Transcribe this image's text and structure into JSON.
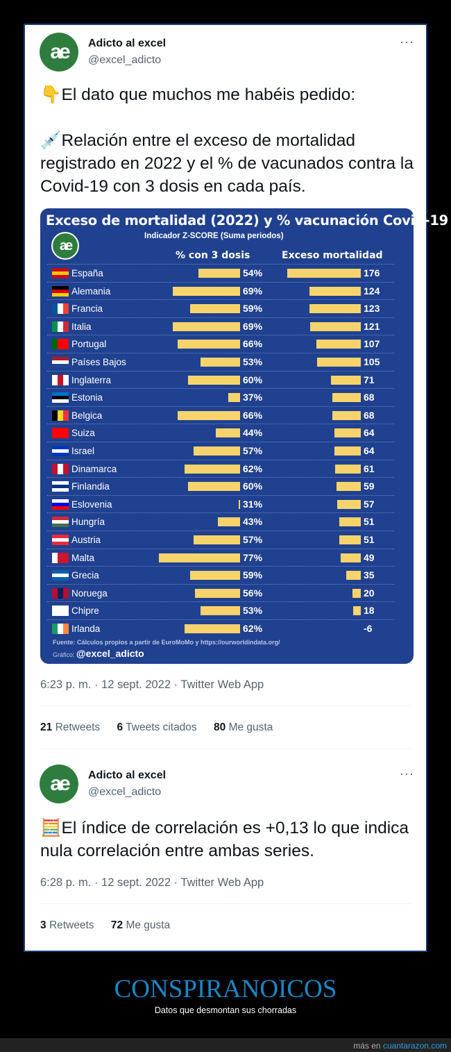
{
  "tweet1": {
    "author": "Adicto al excel",
    "handle": "@excel_adicto",
    "avatar": "ae",
    "more": "···",
    "line1_emoji": "👇",
    "line1": "El dato que muchos me habéis pedido:",
    "line2_emoji": "💉",
    "line2": "Relación entre el exceso de mortalidad registrado en 2022 y el % de vacunados contra la Covid-19 con 3 dosis en cada país.",
    "meta": "6:23 p. m. · 12 sept. 2022 · Twitter Web App",
    "stats": [
      {
        "n": "21",
        "label": "Retweets"
      },
      {
        "n": "6",
        "label": "Tweets citados"
      },
      {
        "n": "80",
        "label": "Me gusta"
      }
    ]
  },
  "chart_data": {
    "type": "table",
    "title": "Exceso de mortalidad (2022) y % vacunación Covid-19",
    "subtitle": "Indicador Z-SCORE (Suma periodos)",
    "logo": "ae",
    "columns": [
      "% con 3 dosis",
      "Exceso mortalidad"
    ],
    "rows": [
      {
        "country": "España",
        "vax": 54,
        "vax_label": "54%",
        "excess": 176,
        "flag": [
          "#c60b1e",
          "#ffc400",
          "#c60b1e"
        ],
        "dir": "h"
      },
      {
        "country": "Alemania",
        "vax": 69,
        "vax_label": "69%",
        "excess": 124,
        "flag": [
          "#000000",
          "#dd0000",
          "#ffce00"
        ],
        "dir": "h"
      },
      {
        "country": "Francia",
        "vax": 59,
        "vax_label": "59%",
        "excess": 123,
        "flag": [
          "#0055a4",
          "#ffffff",
          "#ef4135"
        ],
        "dir": "v"
      },
      {
        "country": "Italia",
        "vax": 69,
        "vax_label": "69%",
        "excess": 121,
        "flag": [
          "#009246",
          "#ffffff",
          "#ce2b37"
        ],
        "dir": "v"
      },
      {
        "country": "Portugal",
        "vax": 66,
        "vax_label": "66%",
        "excess": 107,
        "flag": [
          "#006600",
          "#ff0000",
          "#ff0000"
        ],
        "dir": "v"
      },
      {
        "country": "Países Bajos",
        "vax": 53,
        "vax_label": "53%",
        "excess": 105,
        "flag": [
          "#ae1c28",
          "#ffffff",
          "#21468b"
        ],
        "dir": "h"
      },
      {
        "country": "Inglaterra",
        "vax": 60,
        "vax_label": "60%",
        "excess": 71,
        "flag": [
          "#ffffff",
          "#ce1124",
          "#ffffff"
        ],
        "dir": "v"
      },
      {
        "country": "Estonia",
        "vax": 37,
        "vax_label": "37%",
        "excess": 68,
        "flag": [
          "#0072ce",
          "#000000",
          "#ffffff"
        ],
        "dir": "h"
      },
      {
        "country": "Belgica",
        "vax": 66,
        "vax_label": "66%",
        "excess": 68,
        "flag": [
          "#000000",
          "#fdda24",
          "#ef3340"
        ],
        "dir": "v"
      },
      {
        "country": "Suiza",
        "vax": 44,
        "vax_label": "44%",
        "excess": 64,
        "flag": [
          "#ff0000",
          "#ff0000",
          "#ff0000"
        ],
        "dir": "v"
      },
      {
        "country": "Israel",
        "vax": 57,
        "vax_label": "57%",
        "excess": 64,
        "flag": [
          "#0038b8",
          "#ffffff",
          "#0038b8"
        ],
        "dir": "h"
      },
      {
        "country": "Dinamarca",
        "vax": 62,
        "vax_label": "62%",
        "excess": 61,
        "flag": [
          "#c8102e",
          "#ffffff",
          "#c8102e"
        ],
        "dir": "v"
      },
      {
        "country": "Finlandia",
        "vax": 60,
        "vax_label": "60%",
        "excess": 59,
        "flag": [
          "#ffffff",
          "#003580",
          "#ffffff"
        ],
        "dir": "h"
      },
      {
        "country": "Eslovenia",
        "vax": 31,
        "vax_label": "31%",
        "excess": 57,
        "flag": [
          "#ffffff",
          "#0000ff",
          "#ff0000"
        ],
        "dir": "h"
      },
      {
        "country": "Hungría",
        "vax": 43,
        "vax_label": "43%",
        "excess": 51,
        "flag": [
          "#ce2939",
          "#ffffff",
          "#477050"
        ],
        "dir": "h"
      },
      {
        "country": "Austria",
        "vax": 57,
        "vax_label": "57%",
        "excess": 51,
        "flag": [
          "#ed2939",
          "#ffffff",
          "#ed2939"
        ],
        "dir": "h"
      },
      {
        "country": "Malta",
        "vax": 77,
        "vax_label": "77%",
        "excess": 49,
        "flag": [
          "#ffffff",
          "#cf142b",
          "#cf142b"
        ],
        "dir": "v"
      },
      {
        "country": "Grecia",
        "vax": 59,
        "vax_label": "59%",
        "excess": 35,
        "flag": [
          "#0d5eaf",
          "#ffffff",
          "#0d5eaf"
        ],
        "dir": "h"
      },
      {
        "country": "Noruega",
        "vax": 56,
        "vax_label": "56%",
        "excess": 20,
        "flag": [
          "#ba0c2f",
          "#00205b",
          "#ba0c2f"
        ],
        "dir": "v"
      },
      {
        "country": "Chipre",
        "vax": 53,
        "vax_label": "53%",
        "excess": 18,
        "flag": [
          "#ffffff",
          "#ffffff",
          "#ffffff"
        ],
        "dir": "v"
      },
      {
        "country": "Irlanda",
        "vax": 62,
        "vax_label": "62%",
        "excess": -6,
        "flag": [
          "#169b62",
          "#ffffff",
          "#ff883e"
        ],
        "dir": "v"
      }
    ],
    "source": "Fuente: Cálculos propios a partir de EuroMoMo y https://ourworldindata.org/",
    "credit_label": "Gráfico:",
    "credit": "@excel_adicto"
  },
  "tweet2": {
    "author": "Adicto al excel",
    "handle": "@excel_adicto",
    "avatar": "ae",
    "more": "···",
    "emoji": "🧮",
    "text": "El índice de correlación es +0,13 lo que indica nula correlación entre ambas series.",
    "meta": "6:28 p. m. · 12 sept. 2022 · Twitter Web App",
    "stats": [
      {
        "n": "3",
        "label": "Retweets"
      },
      {
        "n": "72",
        "label": "Me gusta"
      }
    ]
  },
  "footer": {
    "title": "CONSPIRANOICOS",
    "subtitle": "Datos que desmontan sus chorradas",
    "more": "más en",
    "site": "cuantarazon.com"
  }
}
